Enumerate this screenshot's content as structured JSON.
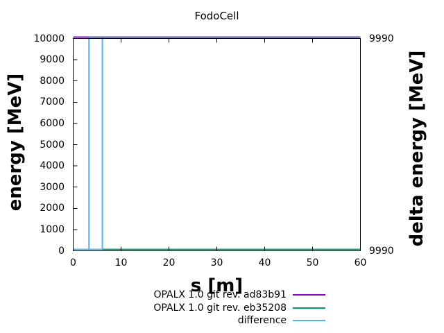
{
  "window": {
    "background": "#ffffff",
    "text_color": "#000000"
  },
  "chart_data": {
    "type": "line",
    "title": "FodoCell",
    "xlabel": "s [m]",
    "ylabel": "energy [MeV]",
    "y2label": "delta energy [MeV]",
    "xlim": [
      0,
      60
    ],
    "ylim": [
      0,
      10000
    ],
    "grid": false,
    "legend_position": "below-plot-right-aligned-samples",
    "x_ticks": [
      0,
      10,
      20,
      30,
      40,
      50,
      60
    ],
    "y_ticks": [
      0,
      1000,
      2000,
      3000,
      4000,
      5000,
      6000,
      7000,
      8000,
      9000,
      10000
    ],
    "y2_tick_labels": {
      "top": "9990",
      "bottom": "9990"
    },
    "series": [
      {
        "name": "OPALX 1.0 git rev. ad83b91",
        "color": "#9400d3",
        "axis": "y1",
        "note": "constant 10000 MeV for s = 0 to 60 (visible pure purple only for s < 3.3)"
      },
      {
        "name": "OPALX 1.0 git rev. eb35208",
        "color": "#009e73",
        "axis": "y1",
        "note": "overlaps first curve at 10000 MeV from s = 3.3 on (blend looks navy); runs at 0 along bottom from s = 6.1 to 60"
      },
      {
        "name": "difference",
        "color": "#56b4e9",
        "axis": "y2",
        "note": "delta energy = 9990; bottom level s = 0 to 6.1 with full-height vertical spikes at s = 3.3 and s = 6.1"
      }
    ],
    "overlap_blend_color": "#4452a4",
    "segments": [
      {
        "kind": "h",
        "y": 10000,
        "x1": 0,
        "x2": 3.3,
        "color": "#9400d3",
        "series": "ad83b91"
      },
      {
        "kind": "h",
        "y": 10000,
        "x1": 3.3,
        "x2": 60,
        "color": "#4452a4",
        "series": "ad83b91+eb35208 overlap"
      },
      {
        "kind": "h",
        "y": 0,
        "x1": 6.1,
        "x2": 60,
        "color": "#009e73",
        "series": "eb35208"
      },
      {
        "kind": "v",
        "x": 3.3,
        "y1": 0,
        "y2": 10000,
        "color": "#56b4e9",
        "series": "difference"
      },
      {
        "kind": "v",
        "x": 6.1,
        "y1": 0,
        "y2": 10000,
        "color": "#56b4e9",
        "series": "difference"
      },
      {
        "kind": "h",
        "y": 0,
        "x1": 0,
        "x2": 6.1,
        "color": "#56b4e9",
        "series": "difference"
      }
    ]
  }
}
